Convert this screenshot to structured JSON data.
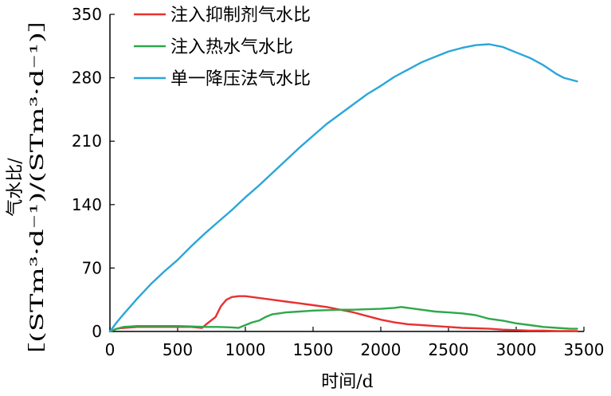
{
  "chart_data": {
    "type": "line",
    "xlabel": "时间/d",
    "ylabel_line1": "气水比/",
    "ylabel_line2": "［(STm³·d⁻¹)/(STm³·d⁻¹)］",
    "xlim": [
      0,
      3500
    ],
    "ylim": [
      0,
      350
    ],
    "xticks": [
      0,
      500,
      1000,
      1500,
      2000,
      2500,
      3000,
      3500
    ],
    "yticks": [
      0,
      70,
      140,
      210,
      280,
      350
    ],
    "grid": false,
    "legend_position": "top-left",
    "series": [
      {
        "name": "注入抑制剂气水比",
        "color": "#e8312f",
        "x": [
          0,
          50,
          100,
          200,
          300,
          400,
          500,
          600,
          680,
          720,
          780,
          820,
          860,
          900,
          950,
          1000,
          1050,
          1100,
          1200,
          1300,
          1400,
          1500,
          1600,
          1700,
          1800,
          1900,
          2000,
          2100,
          2200,
          2300,
          2400,
          2500,
          2600,
          2700,
          2800,
          2900,
          3000,
          3100,
          3200,
          3300,
          3400,
          3450
        ],
        "y": [
          0,
          3,
          4,
          5,
          5,
          5,
          5,
          5,
          4,
          9,
          16,
          28,
          35,
          38,
          39,
          39,
          38,
          37,
          35,
          33,
          31,
          29,
          27,
          24,
          21,
          17,
          13,
          10,
          8,
          7,
          6,
          5,
          4,
          3.5,
          3,
          2,
          1.5,
          1,
          1,
          0.5,
          0.5,
          0.5
        ]
      },
      {
        "name": "注入热水气水比",
        "color": "#2ea84a",
        "x": [
          0,
          50,
          100,
          200,
          300,
          400,
          500,
          600,
          700,
          800,
          900,
          950,
          1000,
          1050,
          1100,
          1150,
          1200,
          1250,
          1300,
          1400,
          1500,
          1600,
          1700,
          1800,
          1900,
          2000,
          2100,
          2150,
          2200,
          2250,
          2300,
          2400,
          2500,
          2600,
          2700,
          2800,
          2900,
          3000,
          3100,
          3200,
          3300,
          3400,
          3450
        ],
        "y": [
          0,
          3,
          5,
          6,
          6,
          6,
          6,
          5.5,
          5,
          5,
          4.5,
          4,
          7,
          10,
          12,
          16,
          19,
          20,
          21,
          22,
          23,
          23.5,
          24,
          24,
          24.5,
          25,
          26,
          27,
          26,
          25,
          24,
          22,
          21,
          20,
          18,
          14,
          12,
          9,
          7,
          5,
          4,
          3,
          3
        ]
      },
      {
        "name": "单一降压法气水比",
        "color": "#2ba6d8",
        "x": [
          0,
          50,
          100,
          200,
          300,
          400,
          500,
          600,
          700,
          800,
          900,
          1000,
          1100,
          1200,
          1300,
          1400,
          1500,
          1600,
          1700,
          1800,
          1900,
          2000,
          2100,
          2200,
          2300,
          2400,
          2500,
          2600,
          2700,
          2800,
          2900,
          3000,
          3100,
          3200,
          3300,
          3350,
          3400,
          3450
        ],
        "y": [
          0,
          10,
          19,
          36,
          52,
          66,
          79,
          94,
          108,
          121,
          134,
          148,
          161,
          175,
          189,
          203,
          216,
          229,
          240,
          251,
          262,
          271,
          281,
          289,
          297,
          303,
          309,
          313,
          316,
          317,
          314,
          308,
          302,
          294,
          284,
          280,
          278,
          276
        ]
      }
    ]
  }
}
